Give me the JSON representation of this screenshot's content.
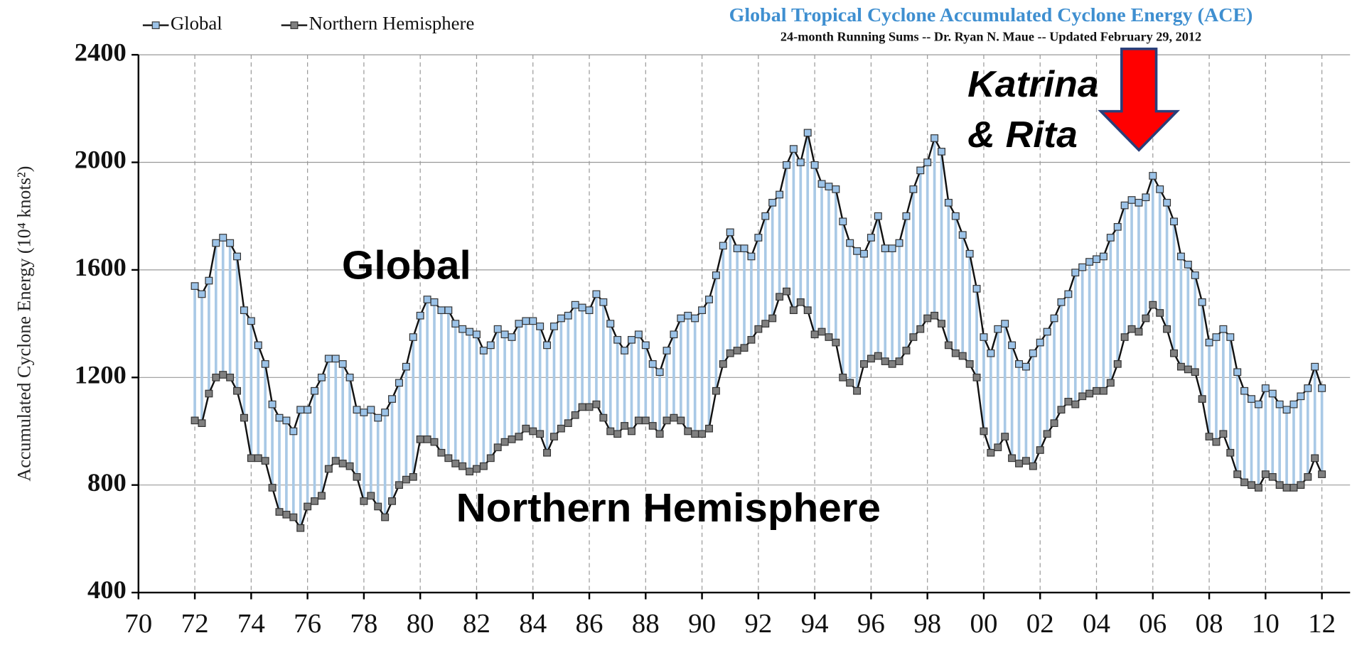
{
  "chart_data": {
    "type": "line",
    "title": "Global Tropical Cyclone Accumulated Cyclone Energy (ACE)",
    "subtitle": "24-month Running Sums -- Dr. Ryan N. Maue -- Updated February 29, 2012",
    "y_label": "Accumulated Cyclone Energy (10⁴ knots²)",
    "annotations": [
      "Global",
      "Northern Hemisphere",
      "Katrina",
      "& Rita"
    ],
    "xlim": [
      1970,
      2013
    ],
    "ylim": [
      400,
      2400
    ],
    "xticks": [
      {
        "value": 1970,
        "label": "70"
      },
      {
        "value": 1972,
        "label": "72"
      },
      {
        "value": 1974,
        "label": "74"
      },
      {
        "value": 1976,
        "label": "76"
      },
      {
        "value": 1978,
        "label": "78"
      },
      {
        "value": 1980,
        "label": "80"
      },
      {
        "value": 1982,
        "label": "82"
      },
      {
        "value": 1984,
        "label": "84"
      },
      {
        "value": 1986,
        "label": "86"
      },
      {
        "value": 1988,
        "label": "88"
      },
      {
        "value": 1990,
        "label": "90"
      },
      {
        "value": 1992,
        "label": "92"
      },
      {
        "value": 1994,
        "label": "94"
      },
      {
        "value": 1996,
        "label": "96"
      },
      {
        "value": 1998,
        "label": "98"
      },
      {
        "value": 2000,
        "label": "00"
      },
      {
        "value": 2002,
        "label": "02"
      },
      {
        "value": 2004,
        "label": "04"
      },
      {
        "value": 2006,
        "label": "06"
      },
      {
        "value": 2008,
        "label": "08"
      },
      {
        "value": 2010,
        "label": "10"
      },
      {
        "value": 2012,
        "label": "12"
      }
    ],
    "yticks": [
      400,
      800,
      1200,
      1600,
      2000,
      2400
    ],
    "grid": true,
    "legend": "top-left",
    "x": [
      1972,
      1972.25,
      1972.5,
      1972.75,
      1973,
      1973.25,
      1973.5,
      1973.75,
      1974,
      1974.25,
      1974.5,
      1974.75,
      1975,
      1975.25,
      1975.5,
      1975.75,
      1976,
      1976.25,
      1976.5,
      1976.75,
      1977,
      1977.25,
      1977.5,
      1977.75,
      1978,
      1978.25,
      1978.5,
      1978.75,
      1979,
      1979.25,
      1979.5,
      1979.75,
      1980,
      1980.25,
      1980.5,
      1980.75,
      1981,
      1981.25,
      1981.5,
      1981.75,
      1982,
      1982.25,
      1982.5,
      1982.75,
      1983,
      1983.25,
      1983.5,
      1983.75,
      1984,
      1984.25,
      1984.5,
      1984.75,
      1985,
      1985.25,
      1985.5,
      1985.75,
      1986,
      1986.25,
      1986.5,
      1986.75,
      1987,
      1987.25,
      1987.5,
      1987.75,
      1988,
      1988.25,
      1988.5,
      1988.75,
      1989,
      1989.25,
      1989.5,
      1989.75,
      1990,
      1990.25,
      1990.5,
      1990.75,
      1991,
      1991.25,
      1991.5,
      1991.75,
      1992,
      1992.25,
      1992.5,
      1992.75,
      1993,
      1993.25,
      1993.5,
      1993.75,
      1994,
      1994.25,
      1994.5,
      1994.75,
      1995,
      1995.25,
      1995.5,
      1995.75,
      1996,
      1996.25,
      1996.5,
      1996.75,
      1997,
      1997.25,
      1997.5,
      1997.75,
      1998,
      1998.25,
      1998.5,
      1998.75,
      1999,
      1999.25,
      1999.5,
      1999.75,
      2000,
      2000.25,
      2000.5,
      2000.75,
      2001,
      2001.25,
      2001.5,
      2001.75,
      2002,
      2002.25,
      2002.5,
      2002.75,
      2003,
      2003.25,
      2003.5,
      2003.75,
      2004,
      2004.25,
      2004.5,
      2004.75,
      2005,
      2005.25,
      2005.5,
      2005.75,
      2006,
      2006.25,
      2006.5,
      2006.75,
      2007,
      2007.25,
      2007.5,
      2007.75,
      2008,
      2008.25,
      2008.5,
      2008.75,
      2009,
      2009.25,
      2009.5,
      2009.75,
      2010,
      2010.25,
      2010.5,
      2010.75,
      2011,
      2011.25,
      2011.5,
      2011.75,
      2012
    ],
    "series": [
      {
        "name": "Global",
        "color": "#9cc3e8",
        "values": [
          1540,
          1510,
          1560,
          1700,
          1720,
          1700,
          1650,
          1450,
          1410,
          1320,
          1250,
          1100,
          1050,
          1040,
          1000,
          1080,
          1080,
          1150,
          1200,
          1270,
          1270,
          1250,
          1200,
          1080,
          1070,
          1080,
          1050,
          1070,
          1120,
          1180,
          1240,
          1350,
          1430,
          1490,
          1480,
          1450,
          1450,
          1400,
          1380,
          1370,
          1360,
          1300,
          1320,
          1380,
          1360,
          1350,
          1400,
          1410,
          1410,
          1390,
          1320,
          1390,
          1420,
          1430,
          1470,
          1460,
          1450,
          1510,
          1480,
          1400,
          1340,
          1300,
          1340,
          1360,
          1320,
          1250,
          1220,
          1300,
          1360,
          1420,
          1430,
          1420,
          1450,
          1490,
          1580,
          1690,
          1740,
          1680,
          1680,
          1650,
          1720,
          1800,
          1850,
          1880,
          1990,
          2050,
          2000,
          2110,
          1990,
          1920,
          1910,
          1900,
          1780,
          1700,
          1670,
          1660,
          1720,
          1800,
          1680,
          1680,
          1700,
          1800,
          1900,
          1970,
          2000,
          2090,
          2040,
          1850,
          1800,
          1730,
          1660,
          1530,
          1350,
          1290,
          1380,
          1400,
          1320,
          1250,
          1240,
          1290,
          1330,
          1370,
          1420,
          1480,
          1510,
          1590,
          1610,
          1630,
          1640,
          1650,
          1720,
          1760,
          1840,
          1860,
          1850,
          1870,
          1950,
          1900,
          1850,
          1780,
          1650,
          1620,
          1580,
          1480,
          1330,
          1350,
          1380,
          1350,
          1220,
          1150,
          1120,
          1100,
          1160,
          1140,
          1100,
          1080,
          1100,
          1130,
          1160,
          1240,
          1160
        ]
      },
      {
        "name": "Northern Hemisphere",
        "color": "#808080",
        "values": [
          1040,
          1030,
          1140,
          1200,
          1210,
          1200,
          1150,
          1050,
          900,
          900,
          890,
          790,
          700,
          690,
          680,
          640,
          720,
          740,
          760,
          860,
          890,
          880,
          870,
          830,
          740,
          760,
          720,
          680,
          740,
          800,
          820,
          830,
          970,
          970,
          960,
          920,
          900,
          880,
          870,
          850,
          860,
          870,
          900,
          940,
          960,
          970,
          980,
          1010,
          1000,
          990,
          920,
          980,
          1010,
          1030,
          1060,
          1090,
          1090,
          1100,
          1050,
          1000,
          990,
          1020,
          1000,
          1040,
          1040,
          1020,
          990,
          1040,
          1050,
          1040,
          1000,
          990,
          990,
          1010,
          1150,
          1250,
          1290,
          1300,
          1310,
          1340,
          1380,
          1400,
          1420,
          1500,
          1520,
          1450,
          1480,
          1450,
          1360,
          1370,
          1350,
          1330,
          1200,
          1180,
          1150,
          1250,
          1270,
          1280,
          1260,
          1250,
          1260,
          1300,
          1350,
          1380,
          1420,
          1430,
          1400,
          1320,
          1290,
          1280,
          1250,
          1200,
          1000,
          920,
          940,
          980,
          900,
          880,
          890,
          870,
          930,
          990,
          1030,
          1080,
          1110,
          1100,
          1130,
          1140,
          1150,
          1150,
          1180,
          1250,
          1350,
          1380,
          1370,
          1420,
          1470,
          1440,
          1380,
          1290,
          1240,
          1230,
          1220,
          1120,
          980,
          960,
          990,
          920,
          840,
          810,
          800,
          790,
          840,
          830,
          800,
          790,
          790,
          800,
          830,
          900,
          840
        ]
      }
    ]
  }
}
